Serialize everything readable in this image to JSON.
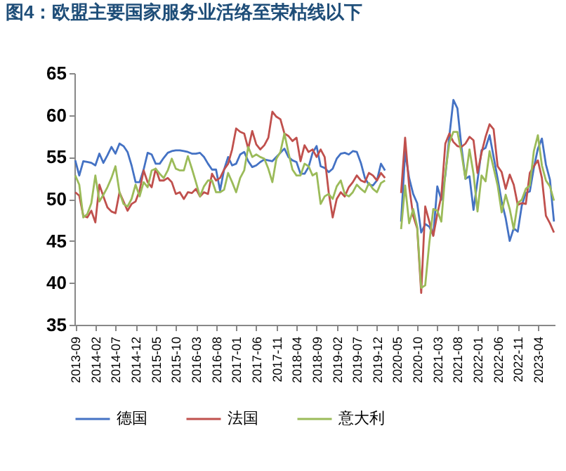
{
  "chart_data": {
    "type": "line",
    "title": "图4：欧盟主要国家服务业活络至荣枯线以下",
    "categories": [
      "2013-09",
      null,
      null,
      null,
      null,
      "2014-02",
      null,
      null,
      null,
      null,
      "2014-07",
      null,
      null,
      null,
      null,
      "2014-12",
      null,
      null,
      null,
      null,
      "2015-05",
      null,
      null,
      null,
      null,
      "2015-10",
      null,
      null,
      null,
      null,
      "2016-03",
      null,
      null,
      null,
      null,
      "2016-08",
      null,
      null,
      null,
      null,
      "2017-01",
      null,
      null,
      null,
      null,
      "2017-06",
      null,
      null,
      null,
      null,
      "2017-11",
      null,
      null,
      null,
      null,
      "2018-04",
      null,
      null,
      null,
      null,
      "2018-09",
      null,
      null,
      null,
      null,
      "2019-02",
      null,
      null,
      null,
      null,
      "2019-07",
      null,
      null,
      null,
      null,
      "2019-12",
      null,
      null,
      null,
      null,
      "2020-05",
      null,
      null,
      null,
      null,
      "2020-10",
      null,
      null,
      null,
      null,
      "2021-03",
      null,
      null,
      null,
      null,
      "2021-08",
      null,
      null,
      null,
      null,
      "2022-01",
      null,
      null,
      null,
      null,
      "2022-06",
      null,
      null,
      null,
      null,
      "2022-11",
      null,
      null,
      null,
      null,
      "2023-04",
      null,
      null,
      null,
      null
    ],
    "series": [
      {
        "name": "德国",
        "color": "#4472c4",
        "values": [
          54.6,
          52.8,
          54.5,
          54.4,
          54.3,
          54.0,
          55.4,
          54.3,
          55.2,
          56.2,
          55.4,
          56.6,
          56.3,
          55.6,
          54.0,
          52.0,
          52.0,
          53.5,
          55.5,
          55.3,
          54.2,
          54.2,
          54.9,
          55.5,
          55.7,
          55.8,
          55.8,
          55.7,
          55.6,
          55.4,
          55.4,
          55.5,
          55.0,
          54.2,
          53.5,
          53.5,
          51.0,
          53.5,
          55.0,
          54.0,
          54.2,
          55.3,
          55.6,
          54.5,
          53.8,
          54.0,
          54.4,
          54.7,
          54.6,
          54.5,
          55.0,
          55.5,
          56.0,
          55.0,
          54.6,
          54.4,
          53.0,
          53.0,
          53.8,
          55.5,
          56.3,
          53.9,
          53.7,
          53.2,
          53.6,
          54.8,
          55.4,
          55.5,
          55.3,
          55.7,
          55.6,
          54.3,
          52.5,
          51.7,
          51.6,
          52.2,
          54.2,
          53.4,
          null,
          null,
          null,
          47.3,
          55.6,
          52.5,
          50.6,
          49.5,
          46.0,
          47.0,
          46.7,
          45.7,
          51.5,
          49.9,
          52.8,
          57.5,
          61.8,
          60.8,
          56.2,
          52.4,
          52.7,
          48.7,
          52.2,
          55.8,
          56.1,
          57.6,
          55.0,
          52.4,
          49.7,
          47.7,
          45.0,
          46.5,
          46.1,
          49.2,
          50.7,
          50.9,
          53.7,
          56.0,
          57.2,
          54.1,
          52.3,
          47.3
        ]
      },
      {
        "name": "法国",
        "color": "#c0504d",
        "values": [
          50.8,
          50.4,
          48.0,
          47.8,
          48.6,
          47.2,
          51.7,
          50.3,
          49.0,
          48.5,
          48.3,
          50.8,
          49.7,
          48.6,
          49.4,
          49.7,
          51.0,
          53.4,
          52.0,
          51.4,
          53.6,
          52.2,
          52.2,
          52.5,
          52.0,
          50.6,
          50.8,
          50.0,
          50.8,
          50.7,
          51.2,
          50.3,
          50.8,
          50.6,
          53.0,
          52.2,
          52.5,
          53.5,
          54.2,
          55.9,
          58.4,
          58.0,
          57.8,
          56.0,
          58.1,
          56.5,
          55.9,
          56.4,
          57.3,
          60.4,
          59.8,
          59.5,
          57.8,
          57.5,
          56.9,
          57.3,
          54.5,
          56.4,
          55.6,
          55.9,
          55.0,
          55.9,
          55.0,
          50.8,
          47.8,
          50.0,
          50.8,
          50.3,
          51.4,
          52.0,
          52.8,
          52.2,
          52.0,
          53.1,
          52.8,
          52.2,
          53.1,
          52.5,
          null,
          null,
          null,
          50.7,
          57.3,
          51.5,
          48.0,
          46.5,
          38.8,
          49.1,
          47.3,
          45.6,
          48.2,
          50.3,
          56.6,
          57.8,
          56.8,
          56.3,
          56.2,
          56.6,
          57.4,
          57.0,
          53.1,
          55.5,
          57.4,
          58.9,
          58.3,
          53.9,
          53.2,
          51.2,
          52.9,
          51.7,
          49.3,
          49.5,
          49.4,
          53.1,
          53.9,
          54.6,
          52.5,
          48.0,
          47.1,
          46.0
        ]
      },
      {
        "name": "意大利",
        "color": "#9bbb59",
        "values": [
          52.8,
          51.7,
          47.8,
          48.2,
          49.5,
          52.8,
          49.7,
          50.5,
          51.4,
          52.5,
          53.9,
          50.8,
          49.4,
          49.1,
          50.0,
          51.7,
          50.3,
          52.0,
          51.4,
          53.4,
          53.6,
          53.0,
          52.5,
          53.4,
          54.8,
          53.6,
          53.4,
          53.4,
          55.1,
          53.6,
          52.0,
          50.3,
          51.5,
          52.2,
          52.2,
          50.8,
          50.8,
          51.1,
          53.1,
          52.0,
          50.8,
          52.5,
          53.4,
          56.2,
          55.0,
          55.3,
          55.0,
          54.8,
          53.6,
          52.0,
          54.8,
          55.6,
          57.8,
          55.5,
          53.5,
          52.8,
          52.8,
          54.2,
          53.9,
          52.8,
          53.1,
          49.4,
          50.3,
          50.6,
          50.0,
          51.5,
          52.2,
          50.6,
          50.3,
          50.8,
          51.7,
          51.2,
          50.8,
          51.9,
          51.2,
          50.8,
          51.9,
          52.2,
          null,
          null,
          null,
          46.4,
          51.6,
          47.1,
          48.8,
          46.7,
          39.4,
          39.7,
          44.7,
          48.8,
          48.6,
          47.3,
          53.1,
          56.7,
          58.0,
          58.0,
          55.5,
          52.4,
          55.9,
          53.0,
          48.5,
          52.8,
          52.1,
          55.7,
          53.7,
          51.6,
          48.4,
          50.5,
          48.8,
          46.4,
          49.5,
          49.9,
          51.2,
          51.6,
          55.7,
          57.6,
          54.0,
          52.2,
          51.5,
          49.8
        ]
      }
    ],
    "ylim": [
      35,
      65
    ],
    "yticks": [
      35,
      40,
      45,
      50,
      55,
      60,
      65
    ],
    "legend": "bottom"
  }
}
